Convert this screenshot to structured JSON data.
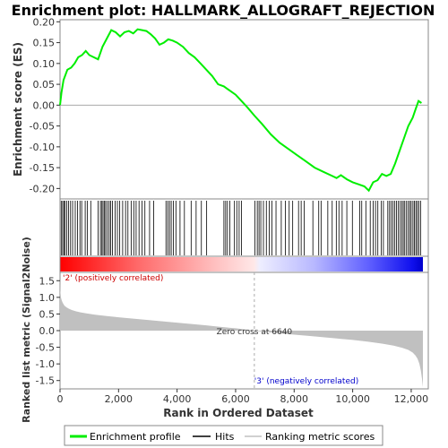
{
  "chart_data": {
    "type": "line",
    "title": "Enrichment plot: HALLMARK_ALLOGRAFT_REJECTION",
    "total_rank": 12400,
    "es_panel": {
      "ylabel": "Enrichment score (ES)",
      "ylim": [
        -0.225,
        0.205
      ],
      "yticks": [
        0.2,
        0.15,
        0.1,
        0.05,
        0.0,
        -0.05,
        -0.1,
        -0.15,
        -0.2
      ],
      "ytick_labels": [
        "0.20",
        "0.15",
        "0.10",
        "0.05",
        "0.00",
        "-0.05",
        "-0.10",
        "-0.15",
        "-0.20"
      ],
      "series": [
        {
          "name": "Enrichment profile",
          "color": "#00ee00",
          "x": [
            0,
            50,
            120,
            250,
            380,
            500,
            620,
            750,
            880,
            1000,
            1150,
            1300,
            1450,
            1600,
            1750,
            1900,
            2050,
            2200,
            2350,
            2500,
            2650,
            2800,
            2950,
            3100,
            3250,
            3400,
            3550,
            3700,
            3850,
            4000,
            4200,
            4400,
            4600,
            4800,
            5000,
            5200,
            5400,
            5600,
            5800,
            6000,
            6200,
            6400,
            6640,
            6900,
            7200,
            7500,
            7800,
            8100,
            8400,
            8700,
            9000,
            9300,
            9450,
            9600,
            9800,
            10000,
            10200,
            10400,
            10550,
            10700,
            10850,
            11000,
            11150,
            11300,
            11450,
            11600,
            11750,
            11900,
            12050,
            12150,
            12250,
            12350
          ],
          "y": [
            0.0,
            0.03,
            0.06,
            0.085,
            0.09,
            0.1,
            0.115,
            0.12,
            0.13,
            0.12,
            0.115,
            0.11,
            0.14,
            0.16,
            0.18,
            0.175,
            0.165,
            0.175,
            0.178,
            0.172,
            0.182,
            0.18,
            0.178,
            0.17,
            0.16,
            0.145,
            0.15,
            0.158,
            0.155,
            0.15,
            0.14,
            0.125,
            0.115,
            0.1,
            0.085,
            0.07,
            0.05,
            0.045,
            0.035,
            0.025,
            0.01,
            -0.005,
            -0.025,
            -0.045,
            -0.07,
            -0.09,
            -0.105,
            -0.12,
            -0.135,
            -0.15,
            -0.16,
            -0.17,
            -0.175,
            -0.168,
            -0.178,
            -0.185,
            -0.19,
            -0.195,
            -0.205,
            -0.185,
            -0.18,
            -0.165,
            -0.17,
            -0.165,
            -0.14,
            -0.11,
            -0.08,
            -0.05,
            -0.03,
            -0.01,
            0.01,
            0.005
          ]
        }
      ]
    },
    "hits": {
      "name": "Hits",
      "positions": [
        40,
        90,
        130,
        170,
        230,
        290,
        360,
        430,
        520,
        600,
        680,
        740,
        860,
        930,
        1050,
        1300,
        1380,
        1430,
        1470,
        1520,
        1560,
        1620,
        1680,
        1730,
        1790,
        1880,
        1960,
        2040,
        2140,
        2240,
        2320,
        2430,
        2520,
        2600,
        2700,
        2800,
        2900,
        3060,
        3200,
        3620,
        3680,
        3740,
        3800,
        3870,
        3960,
        4100,
        4250,
        4480,
        4650,
        4830,
        5010,
        5600,
        5660,
        5720,
        5800,
        5960,
        6040,
        6120,
        6200,
        6660,
        6740,
        6800,
        6860,
        6950,
        7050,
        7150,
        7240,
        7380,
        7560,
        7700,
        7830,
        7950,
        8150,
        8240,
        8340,
        8640,
        8840,
        8920,
        9150,
        9300,
        9440,
        9530,
        9640,
        9800,
        9990,
        10240,
        10310,
        10450,
        10600,
        10700,
        10780,
        10860,
        10980,
        11050,
        11200,
        11260,
        11320,
        11380,
        11440,
        11500,
        11560,
        11620,
        11680,
        11730,
        11780,
        11840,
        11900,
        11950,
        12000,
        12060,
        12110,
        12160,
        12210,
        12260,
        12320
      ]
    },
    "metric_panel": {
      "ylabel": "Ranked list metric (Signal2Noise)",
      "xlabel": "Rank in Ordered Dataset",
      "ylim": [
        -1.75,
        1.75
      ],
      "yticks": [
        1.5,
        1.0,
        0.5,
        0.0,
        -0.5,
        -1.0,
        -1.5
      ],
      "ytick_labels": [
        "1.5",
        "1.0",
        "0.5",
        "0.0",
        "-0.5",
        "-1.0",
        "-1.5"
      ],
      "xticks": [
        0,
        2000,
        4000,
        6000,
        8000,
        10000,
        12000
      ],
      "xtick_labels": [
        "0",
        "2,000",
        "4,000",
        "6,000",
        "8,000",
        "10,000",
        "12,000"
      ],
      "profile_x": [
        0,
        10,
        30,
        60,
        100,
        150,
        220,
        300,
        400,
        550,
        700,
        900,
        1200,
        1600,
        2000,
        2500,
        3000,
        3500,
        4000,
        4500,
        5000,
        5500,
        6000,
        6400,
        6640,
        7000,
        7500,
        8000,
        8500,
        9000,
        9500,
        10000,
        10500,
        11000,
        11400,
        11700,
        11900,
        12050,
        12150,
        12220,
        12280,
        12330,
        12370,
        12400
      ],
      "profile_y": [
        1.6,
        1.2,
        1.0,
        0.9,
        0.82,
        0.75,
        0.7,
        0.66,
        0.62,
        0.58,
        0.55,
        0.52,
        0.48,
        0.44,
        0.4,
        0.36,
        0.32,
        0.28,
        0.24,
        0.2,
        0.16,
        0.11,
        0.07,
        0.03,
        0.0,
        -0.04,
        -0.08,
        -0.12,
        -0.16,
        -0.2,
        -0.24,
        -0.28,
        -0.33,
        -0.39,
        -0.45,
        -0.52,
        -0.58,
        -0.66,
        -0.75,
        -0.85,
        -1.0,
        -1.2,
        -1.45,
        -1.7
      ],
      "zero_cross_label": "Zero cross at 6640",
      "zero_cross_rank": 6640,
      "pos_label": "'2' (positively correlated)",
      "neg_label": "'3' (negatively correlated)"
    },
    "legend": {
      "placement": "bottom",
      "items": [
        {
          "label": "Enrichment profile",
          "color": "#00ee00"
        },
        {
          "label": "Hits",
          "color": "#000000"
        },
        {
          "label": "Ranking metric scores",
          "color": "#c0c0c0"
        }
      ]
    }
  }
}
